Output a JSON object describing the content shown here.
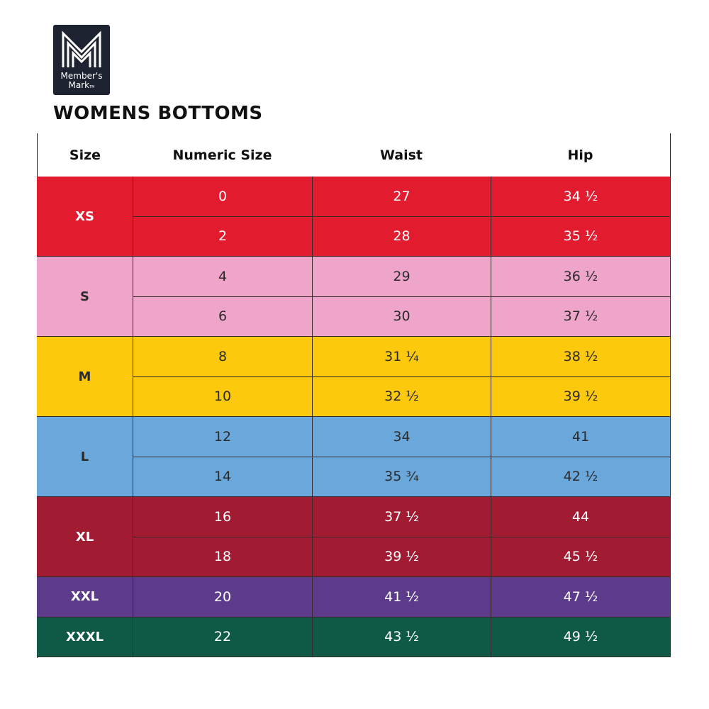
{
  "logo": {
    "line1": "Member's",
    "line2": "Mark",
    "trademark": "TM"
  },
  "title": "WOMENS BOTTOMS",
  "table": {
    "headers": [
      "Size",
      "Numeric Size",
      "Waist",
      "Hip"
    ],
    "groups": [
      {
        "size": "XS",
        "color": "#e31b2f",
        "text_color": "#ffffff",
        "rows": [
          [
            "0",
            "27",
            "34 ½"
          ],
          [
            "2",
            "28",
            "35 ½"
          ]
        ]
      },
      {
        "size": "S",
        "color": "#eea5c9",
        "text_color": "#2b2b2b",
        "rows": [
          [
            "4",
            "29",
            "36 ½"
          ],
          [
            "6",
            "30",
            "37 ½"
          ]
        ]
      },
      {
        "size": "M",
        "color": "#fdc90c",
        "text_color": "#2b2b2b",
        "rows": [
          [
            "8",
            "31 ¼",
            "38 ½"
          ],
          [
            "10",
            "32 ½",
            "39 ½"
          ]
        ]
      },
      {
        "size": "L",
        "color": "#6aa8dc",
        "text_color": "#2b2b2b",
        "rows": [
          [
            "12",
            "34",
            "41"
          ],
          [
            "14",
            "35 ¾",
            "42 ½"
          ]
        ]
      },
      {
        "size": "XL",
        "color": "#a11c33",
        "text_color": "#ffffff",
        "rows": [
          [
            "16",
            "37 ½",
            "44"
          ],
          [
            "18",
            "39 ½",
            "45 ½"
          ]
        ]
      },
      {
        "size": "XXL",
        "color": "#5b3b8a",
        "text_color": "#ffffff",
        "rows": [
          [
            "20",
            "41 ½",
            "47 ½"
          ]
        ]
      },
      {
        "size": "XXXL",
        "color": "#0f5a47",
        "text_color": "#ffffff",
        "rows": [
          [
            "22",
            "43 ½",
            "49 ½"
          ]
        ]
      }
    ]
  }
}
